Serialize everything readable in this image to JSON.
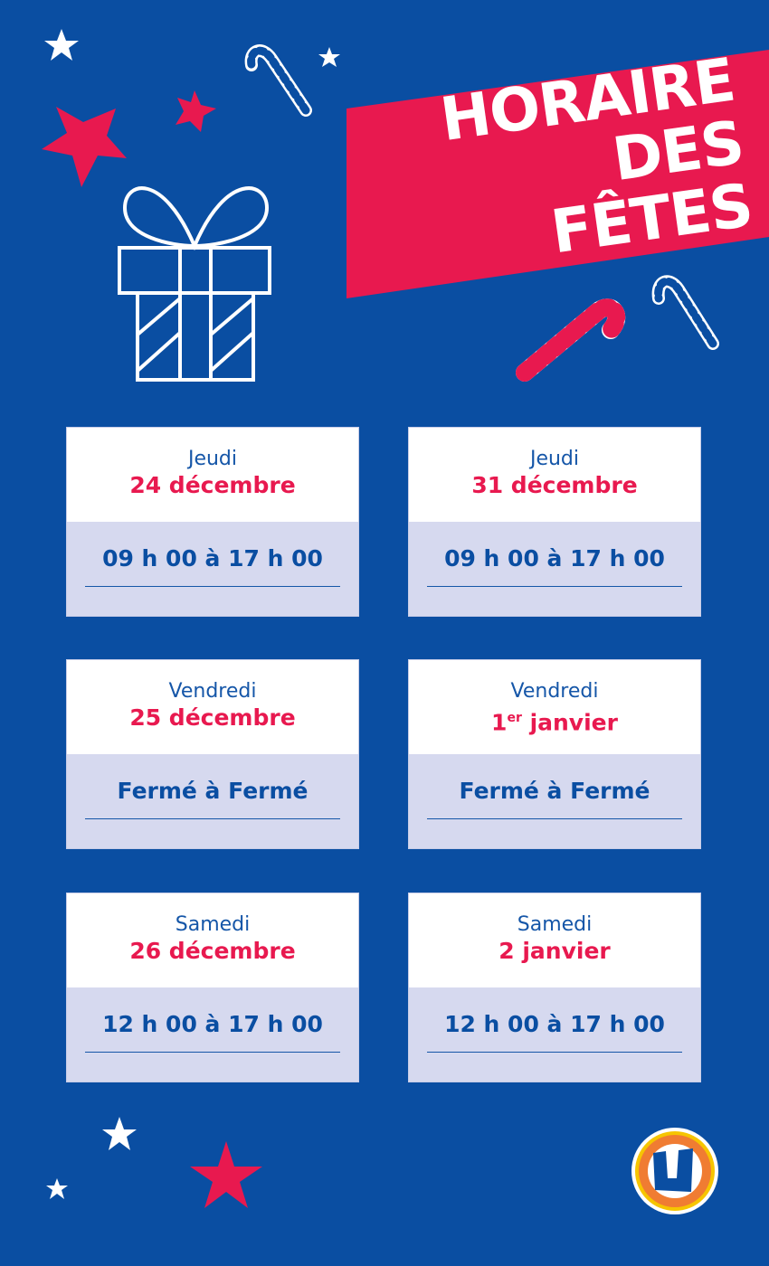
{
  "title": {
    "line1": "HORAIRE",
    "line2": "DES FÊTES"
  },
  "colors": {
    "background": "#0a4ea2",
    "accent": "#e8194f",
    "card_bottom": "#d6d9ef"
  },
  "schedule": [
    {
      "day": "Jeudi",
      "date": "24 décembre",
      "hours": "09 h 00 à 17 h 00"
    },
    {
      "day": "Jeudi",
      "date": "31 décembre",
      "hours": "09 h 00 à 17 h 00"
    },
    {
      "day": "Vendredi",
      "date": "25 décembre",
      "hours": "Fermé à Fermé"
    },
    {
      "day": "Vendredi",
      "date_num": "1",
      "date_sup": "er",
      "date_rest": " janvier",
      "hours": "Fermé à Fermé"
    },
    {
      "day": "Samedi",
      "date": "26 décembre",
      "hours": "12 h 00 à 17 h 00"
    },
    {
      "day": "Samedi",
      "date": "2 janvier",
      "hours": "12 h 00 à 17 h 00"
    }
  ],
  "logo": {
    "letter": "U"
  }
}
